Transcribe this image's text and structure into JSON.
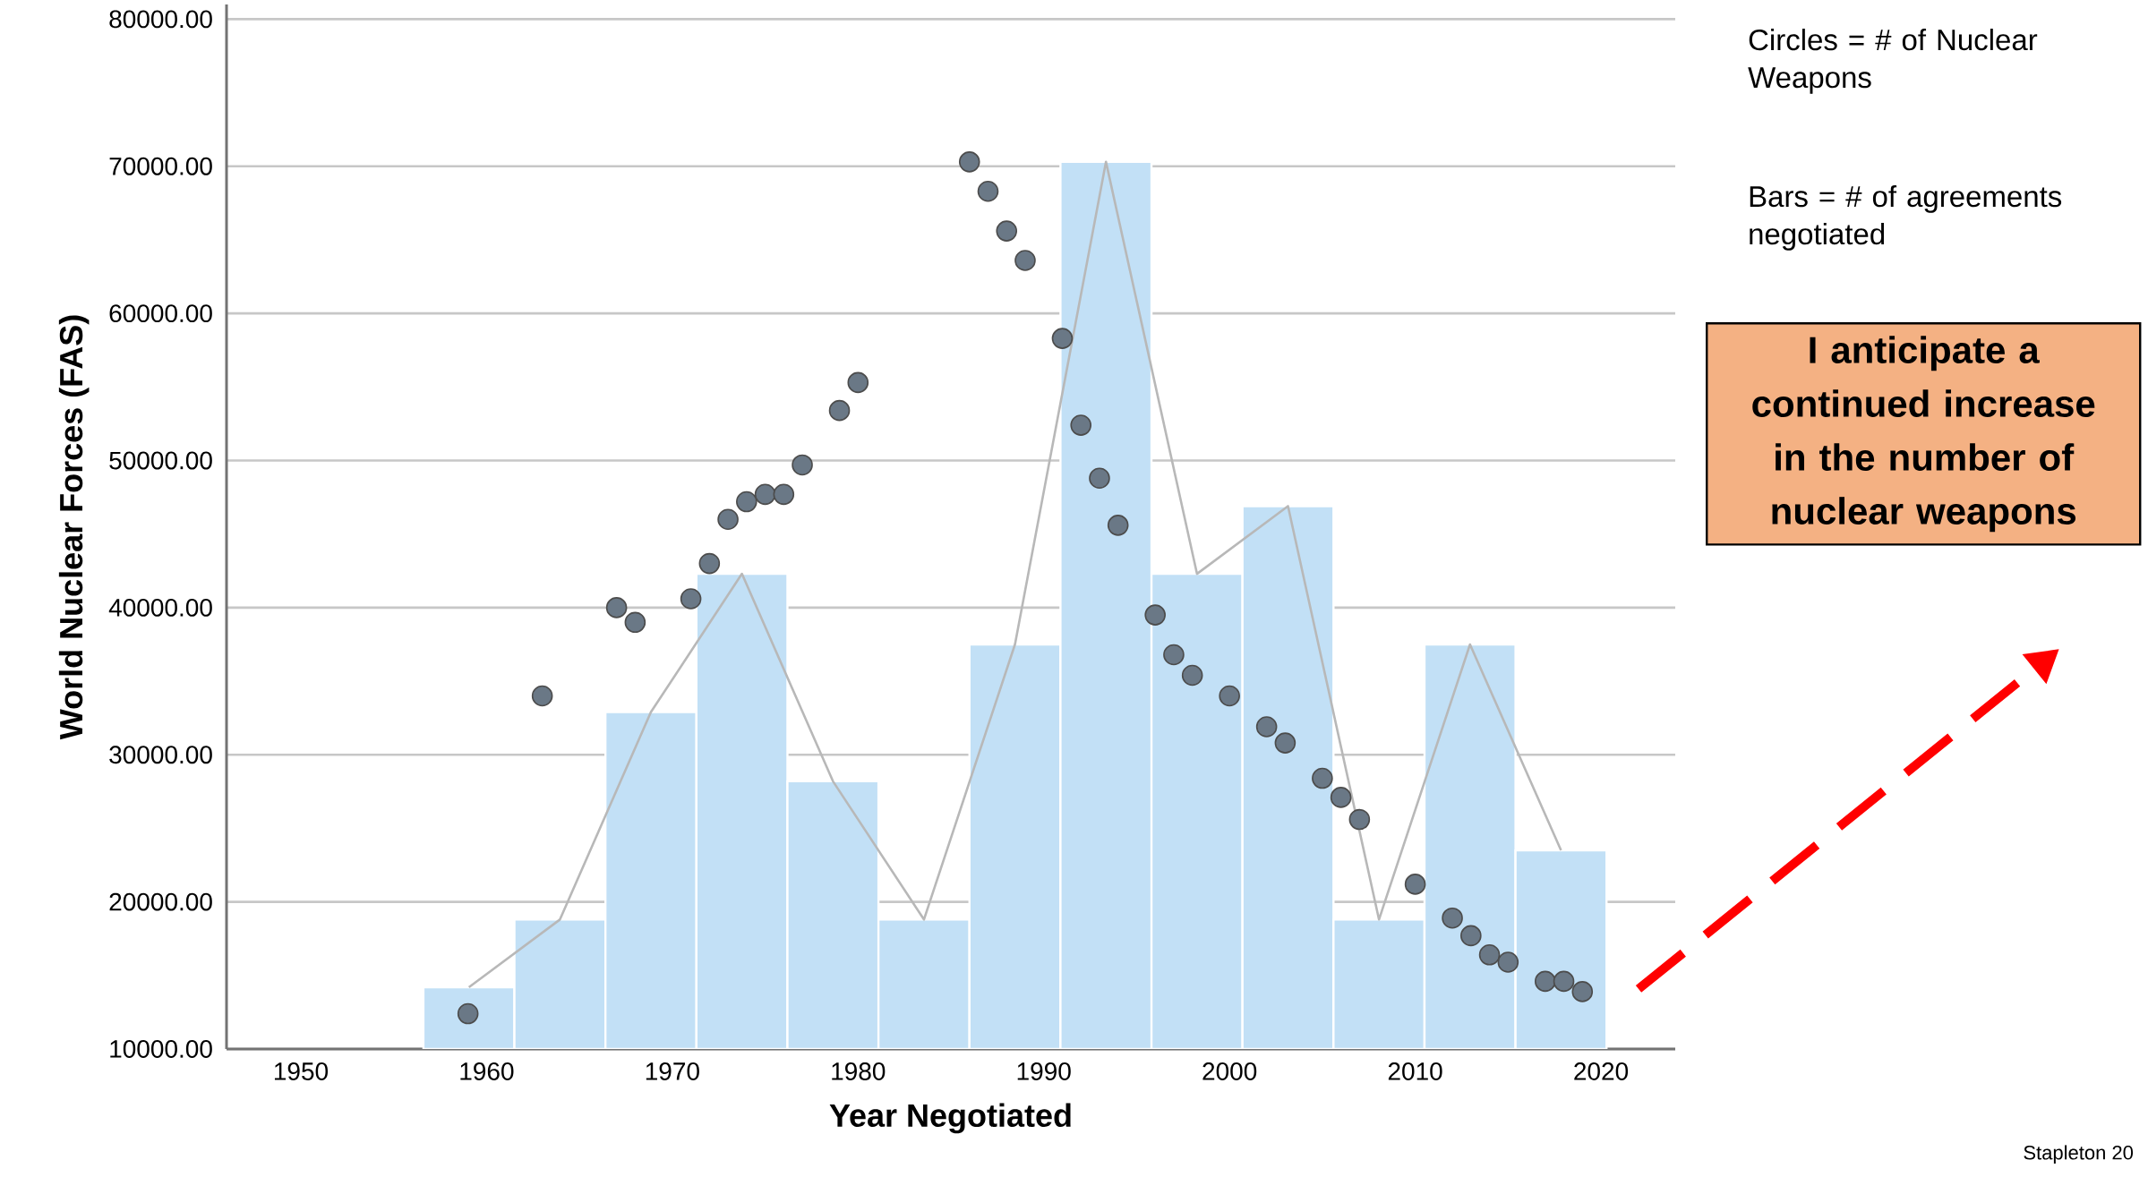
{
  "chart_data": {
    "type": "histogram",
    "xlabel": "Year Negotiated",
    "ylabel": "World Nuclear Forces (FAS)",
    "bins": [
      1956.6,
      1961.5,
      1966.4,
      1971.3,
      1976.2,
      1981.1,
      1986.0,
      1990.9,
      1995.8,
      2000.7,
      2005.6,
      2010.5,
      2015.4,
      2020.3
    ],
    "series": [
      {
        "color": "#c2e0f6",
        "values": [
          14200,
          18800,
          32900,
          42300,
          28200,
          18800,
          37500,
          70300,
          42300,
          46900,
          18800,
          37500,
          23500
        ]
      },
      {
        "type": "line",
        "color": "#b8b8b8",
        "x": [
          1959.05,
          1963.95,
          1968.85,
          1973.75,
          1978.65,
          1983.55,
          1988.45,
          1993.35,
          1998.25,
          2003.15,
          2008.05,
          2012.95,
          2017.85
        ],
        "values": [
          14200,
          18800,
          32900,
          42300,
          28200,
          18800,
          37500,
          70300,
          42300,
          46900,
          18800,
          37500,
          23500
        ]
      },
      {
        "type": "scatter",
        "marker": "circle",
        "color": "#6a7886",
        "x": [
          1959,
          1963,
          1967,
          1968,
          1971,
          1972,
          1973,
          1974,
          1975,
          1976,
          1977,
          1979,
          1980,
          1986,
          1987,
          1988,
          1989,
          1991,
          1992,
          1993,
          1994,
          1996,
          1997,
          1998,
          2000,
          2002,
          2003,
          2005,
          2006,
          2007,
          2010,
          2012,
          2013,
          2014,
          2015,
          2017,
          2018,
          2019
        ],
        "values": [
          12400,
          34000,
          40000,
          39000,
          40600,
          43000,
          46000,
          47200,
          47700,
          47700,
          49700,
          53400,
          55300,
          70300,
          68300,
          65600,
          63600,
          58300,
          52400,
          48800,
          45600,
          39500,
          36800,
          35400,
          34000,
          31900,
          30800,
          28400,
          27100,
          25600,
          21200,
          18900,
          17700,
          16400,
          15900,
          14600,
          14600,
          13900
        ]
      }
    ],
    "xlim": [
      1946,
      2024
    ],
    "ylim": [
      10000,
      81000
    ],
    "xticks": [
      1950,
      1960,
      1970,
      1980,
      1990,
      2000,
      2010,
      2020
    ],
    "yticks": [
      {
        "value": 10000,
        "label": "10000.00"
      },
      {
        "value": 20000,
        "label": "20000.00"
      },
      {
        "value": 30000,
        "label": "30000.00"
      },
      {
        "value": 40000,
        "label": "40000.00"
      },
      {
        "value": 50000,
        "label": "50000.00"
      },
      {
        "value": 60000,
        "label": "60000.00"
      },
      {
        "value": 70000,
        "label": "70000.00"
      },
      {
        "value": 80000,
        "label": "80000.00"
      }
    ],
    "grid": "y",
    "annotations": [
      "Circles = # of Nuclear Weapons",
      "Bars = # of agreements negotiated",
      "I anticipate a continued increase in the number of nuclear weapons",
      "Stapleton 20"
    ]
  }
}
